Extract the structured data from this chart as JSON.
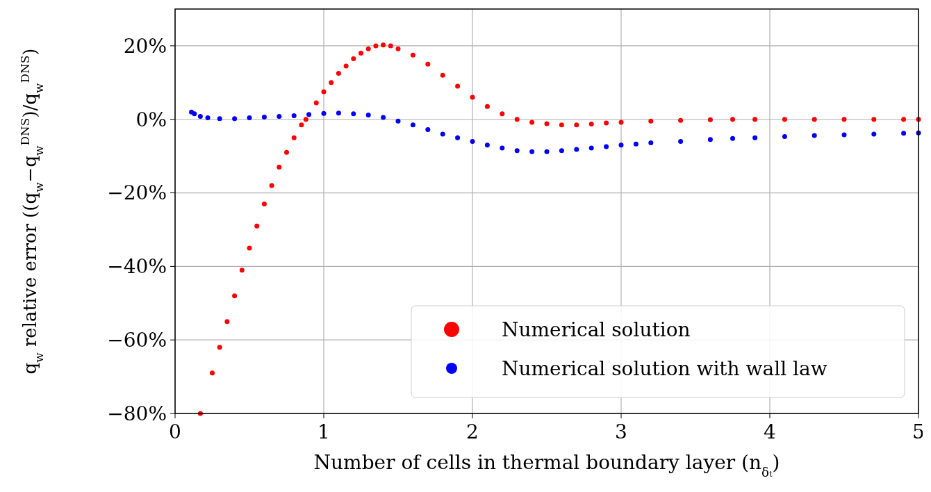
{
  "chart_data": {
    "type": "scatter",
    "xlabel": "Number of cells in thermal boundary layer (n$_{δₜ}$)",
    "ylabel": "q$_{w}$ relative error ((q$_{w}$−q$_{w}$$^{DNS}$)/q$_{w}$$^{DNS}$)",
    "xlim": [
      0,
      5
    ],
    "ylim": [
      -80,
      30
    ],
    "xticks": [
      0,
      1,
      2,
      3,
      4,
      5
    ],
    "yticks": [
      {
        "value": -80,
        "label": "−80%"
      },
      {
        "value": -60,
        "label": "−60%"
      },
      {
        "value": -40,
        "label": "−40%"
      },
      {
        "value": -20,
        "label": "−20%"
      },
      {
        "value": 0,
        "label": "0%"
      },
      {
        "value": 20,
        "label": "20%"
      }
    ],
    "grid": true,
    "legend": "bottom right",
    "marker": "circle",
    "series": [
      {
        "name": "Numerical solution",
        "color": "#ff0000",
        "x": [
          0.17,
          0.25,
          0.3,
          0.35,
          0.4,
          0.45,
          0.5,
          0.55,
          0.6,
          0.65,
          0.7,
          0.75,
          0.8,
          0.85,
          0.88,
          0.95,
          1.0,
          1.05,
          1.1,
          1.15,
          1.2,
          1.25,
          1.3,
          1.35,
          1.4,
          1.45,
          1.5,
          1.6,
          1.7,
          1.8,
          1.9,
          2.0,
          2.1,
          2.2,
          2.3,
          2.4,
          2.5,
          2.6,
          2.7,
          2.8,
          2.9,
          3.0,
          3.2,
          3.4,
          3.6,
          3.75,
          3.9,
          4.1,
          4.3,
          4.5,
          4.7,
          4.9,
          5.0
        ],
        "values": [
          -80,
          -69,
          -62,
          -55,
          -48,
          -41,
          -35,
          -29,
          -23,
          -18,
          -13,
          -9,
          -5,
          -1.5,
          0,
          4.5,
          7.5,
          10,
          12.5,
          14.5,
          16.5,
          18,
          19.2,
          20,
          20.2,
          20,
          19.2,
          17.5,
          15,
          12,
          9,
          6,
          3.5,
          1.5,
          0,
          -0.8,
          -1.2,
          -1.5,
          -1.5,
          -1.3,
          -1,
          -0.8,
          -0.5,
          -0.3,
          -0.1,
          0,
          0,
          0,
          0,
          0,
          0,
          0,
          0
        ]
      },
      {
        "name": "Numerical solution with wall law",
        "color": "#0000ff",
        "x": [
          0.11,
          0.13,
          0.17,
          0.22,
          0.3,
          0.4,
          0.5,
          0.6,
          0.7,
          0.8,
          0.9,
          1.0,
          1.1,
          1.2,
          1.3,
          1.4,
          1.5,
          1.6,
          1.7,
          1.8,
          1.9,
          2.0,
          2.1,
          2.2,
          2.3,
          2.4,
          2.5,
          2.6,
          2.7,
          2.8,
          2.9,
          3.0,
          3.1,
          3.2,
          3.4,
          3.6,
          3.75,
          3.9,
          4.1,
          4.3,
          4.5,
          4.7,
          4.9,
          5.0
        ],
        "values": [
          2,
          1.5,
          0.8,
          0.4,
          0.2,
          0.2,
          0.4,
          0.6,
          0.8,
          1,
          1.3,
          1.6,
          1.7,
          1.5,
          1.2,
          0.5,
          -0.5,
          -1.5,
          -2.8,
          -4,
          -5,
          -6,
          -7,
          -7.8,
          -8.5,
          -8.8,
          -8.8,
          -8.5,
          -8.2,
          -7.8,
          -7.4,
          -7,
          -6.7,
          -6.4,
          -6,
          -5.5,
          -5.2,
          -5,
          -4.7,
          -4.4,
          -4.2,
          -4,
          -3.8,
          -3.7
        ]
      }
    ]
  }
}
